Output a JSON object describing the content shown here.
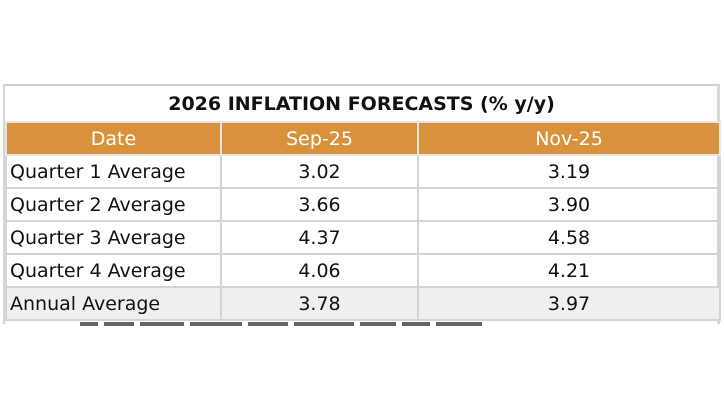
{
  "title": "2026 INFLATION FORECASTS (% y/y)",
  "header": {
    "date": "Date",
    "col1": "Sep-25",
    "col2": "Nov-25"
  },
  "rows": [
    {
      "label": "Quarter 1 Average",
      "sep": "3.02",
      "nov": "3.19"
    },
    {
      "label": "Quarter 2 Average",
      "sep": "3.66",
      "nov": "3.90"
    },
    {
      "label": "Quarter 3 Average",
      "sep": "4.37",
      "nov": "4.58"
    },
    {
      "label": "Quarter 4 Average",
      "sep": "4.06",
      "nov": "4.21"
    },
    {
      "label": "Annual Average",
      "sep": "3.78",
      "nov": "3.97"
    }
  ],
  "colors": {
    "header_bg": "#d7923b",
    "header_text": "#ffffff",
    "annual_row_bg": "#efefef",
    "border": "#d4d4d4"
  }
}
